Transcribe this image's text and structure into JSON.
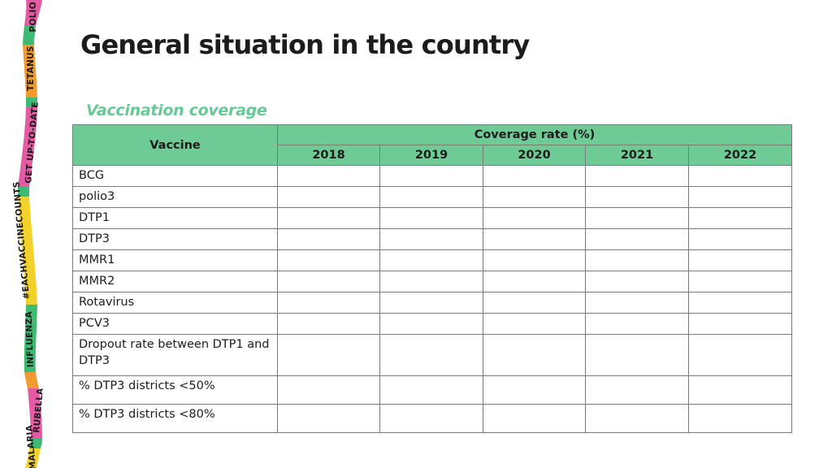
{
  "ribbon": {
    "segments": [
      "POLIO",
      "TETANUS",
      "GET UP-TO-DATE",
      "#EACHVACCINECOUNTS",
      "INFLUENZA",
      "RUBELLA",
      "MALARIA"
    ],
    "colors": [
      "#e45aa3",
      "#f39a2e",
      "#e45aa3",
      "#f2d12a",
      "#3dbb72",
      "#e45aa3",
      "#f2d12a"
    ]
  },
  "title": "General situation in the country",
  "subtitle": "Vaccination coverage",
  "table": {
    "vaccine_header": "Vaccine",
    "coverage_header": "Coverage rate (%)",
    "years": [
      "2018",
      "2019",
      "2020",
      "2021",
      "2022"
    ],
    "rows": [
      {
        "label": "BCG",
        "values": [
          "",
          "",
          "",
          "",
          ""
        ]
      },
      {
        "label": "polio3",
        "values": [
          "",
          "",
          "",
          "",
          ""
        ]
      },
      {
        "label": "DTP1",
        "values": [
          "",
          "",
          "",
          "",
          ""
        ]
      },
      {
        "label": "DTP3",
        "values": [
          "",
          "",
          "",
          "",
          ""
        ]
      },
      {
        "label": "MMR1",
        "values": [
          "",
          "",
          "",
          "",
          ""
        ]
      },
      {
        "label": "MMR2",
        "values": [
          "",
          "",
          "",
          "",
          ""
        ]
      },
      {
        "label": "Rotavirus",
        "values": [
          "",
          "",
          "",
          "",
          ""
        ]
      },
      {
        "label": "PCV3",
        "values": [
          "",
          "",
          "",
          "",
          ""
        ]
      },
      {
        "label": "Dropout rate between DTP1 and DTP3",
        "values": [
          "",
          "",
          "",
          "",
          ""
        ]
      },
      {
        "label": "% DTP3 districts <50%",
        "values": [
          "",
          "",
          "",
          "",
          ""
        ]
      },
      {
        "label": "% DTP3 districts <80%",
        "values": [
          "",
          "",
          "",
          "",
          ""
        ]
      }
    ],
    "header_color": "#6ecb95"
  }
}
